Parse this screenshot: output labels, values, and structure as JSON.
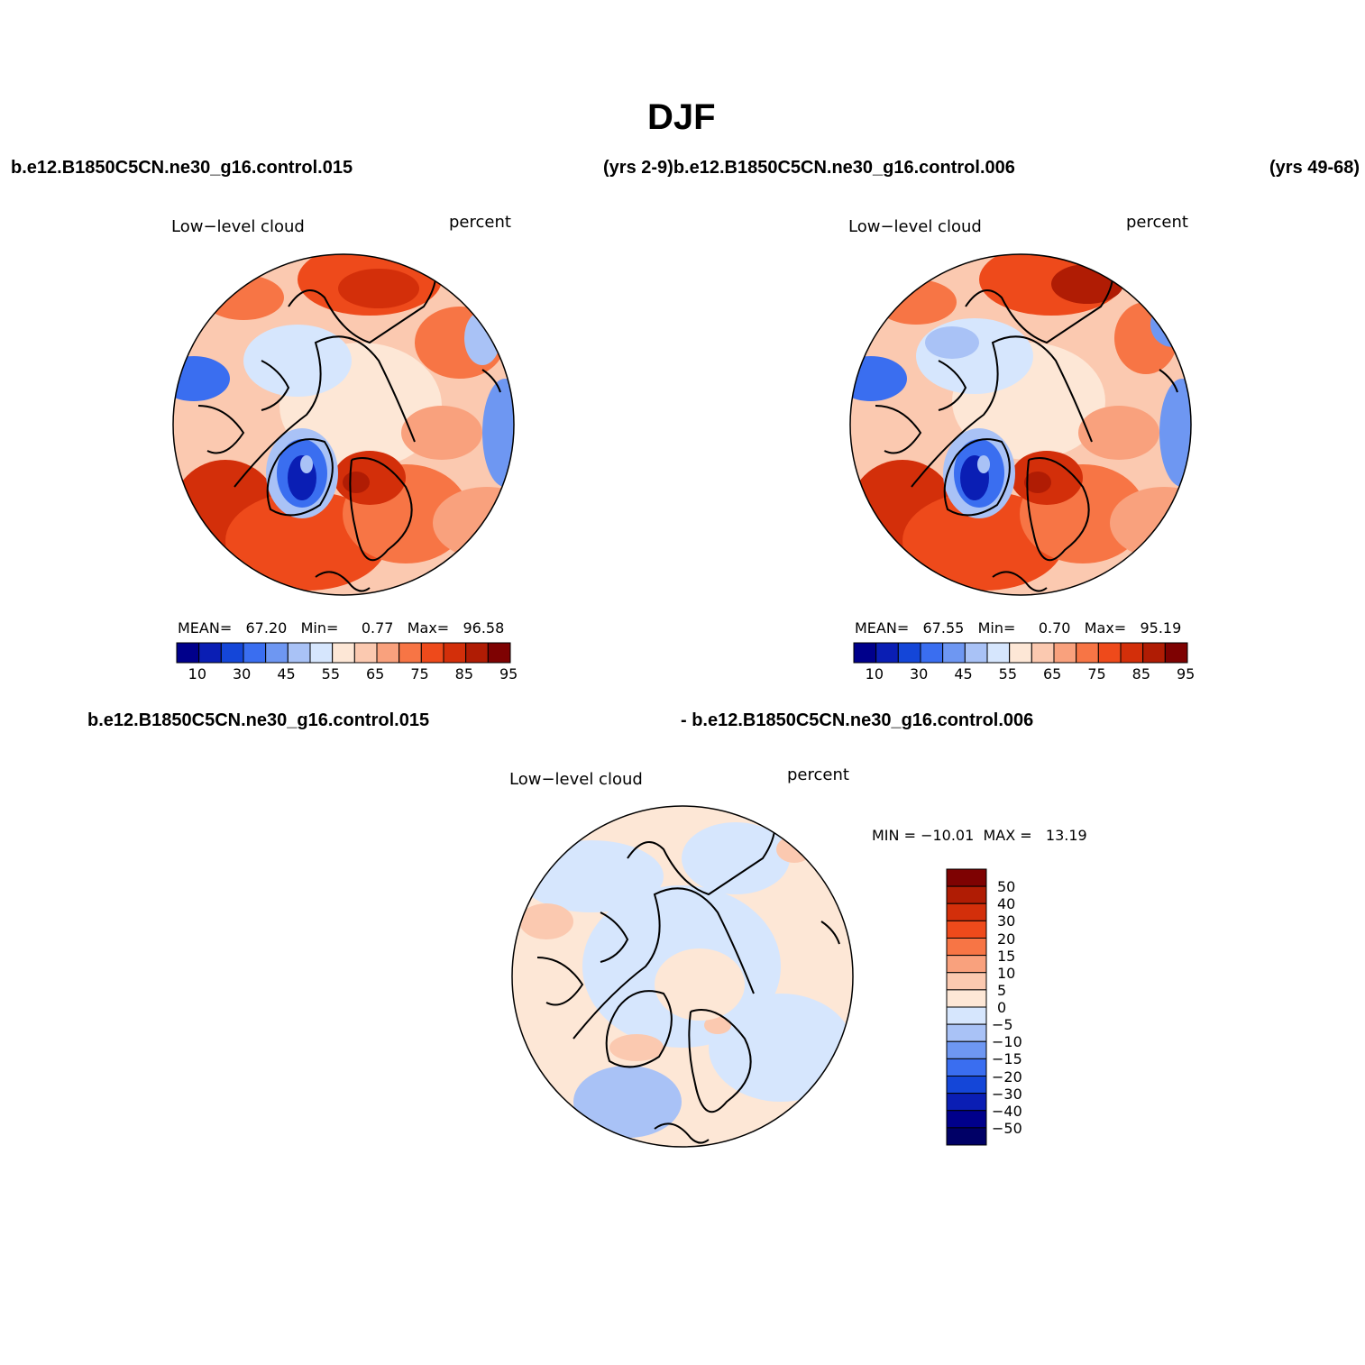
{
  "figure": {
    "title": "DJF",
    "top_left_case": "b.e12.B1850C5CN.ne30_g16.control.015",
    "top_middle_case": "(yrs 2-9)b.e12.B1850C5CN.ne30_g16.control.006",
    "top_right_years": "(yrs 49-68)",
    "diff_left_case": "b.e12.B1850C5CN.ne30_g16.control.015",
    "diff_right_case": "- b.e12.B1850C5CN.ne30_g16.control.006"
  },
  "panels": [
    {
      "variable": "Low−level cloud",
      "units": "percent",
      "stats": {
        "mean_label": "MEAN=",
        "mean": "67.20",
        "min_label": "Min=",
        "min": "0.77",
        "max_label": "Max=",
        "max": "96.58"
      },
      "colorbar_ticks": [
        "10",
        "30",
        "45",
        "55",
        "65",
        "75",
        "85",
        "95"
      ]
    },
    {
      "variable": "Low−level cloud",
      "units": "percent",
      "stats": {
        "mean_label": "MEAN=",
        "mean": "67.55",
        "min_label": "Min=",
        "min": "0.70",
        "max_label": "Max=",
        "max": "95.19"
      },
      "colorbar_ticks": [
        "10",
        "30",
        "45",
        "55",
        "65",
        "75",
        "85",
        "95"
      ]
    },
    {
      "variable": "Low−level cloud",
      "units": "percent",
      "minmax": "MIN = −10.01  MAX =   13.19",
      "colorbar_ticks": [
        "50",
        "40",
        "30",
        "20",
        "15",
        "10",
        "5",
        "0",
        "−5",
        "−10",
        "−15",
        "−20",
        "−30",
        "−40",
        "−50"
      ]
    }
  ],
  "palettes": {
    "absolute": [
      "#00008b",
      "#0a1eb4",
      "#1446d8",
      "#3a6ef0",
      "#6e97f2",
      "#a9c2f6",
      "#d6e6fd",
      "#fde7d6",
      "#fbc9b0",
      "#f9a17d",
      "#f77545",
      "#ee4a1b",
      "#d32f0a",
      "#b01c04",
      "#7e0202"
    ],
    "difference": [
      "#7e0202",
      "#b01c04",
      "#d32f0a",
      "#ee4a1b",
      "#f77545",
      "#f9a17d",
      "#fbc9b0",
      "#fde7d6",
      "#d6e6fd",
      "#a9c2f6",
      "#6e97f2",
      "#3a6ef0",
      "#1446d8",
      "#0a1eb4",
      "#00008b",
      "#000066"
    ]
  }
}
